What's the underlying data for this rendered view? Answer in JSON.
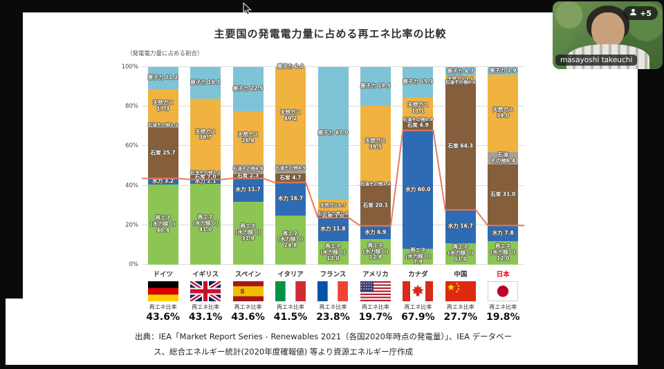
{
  "meeting": {
    "participant_name": "masayoshi takeuchi",
    "participants_overflow": "+5"
  },
  "slide": {
    "title": "主要国の発電電力量に占める再エネ比率の比較",
    "y_axis_caption": "（発電電力量に占める割合）",
    "ratio_label": "再エネ比率",
    "source_line1": "出典：IEA「Market Report Series - Renewables 2021（各国2020年時点の発電量）」、IEA データベー",
    "source_line2": "ス、総合エネルギー統計(2020年度確報値) 等より資源エネルギー庁作成"
  },
  "chart_data": {
    "type": "bar",
    "stacked": true,
    "title": "主要国の発電電力量に占める再エネ比率の比較",
    "ylabel": "（発電電力量に占める割合）",
    "ylim": [
      0,
      100
    ],
    "ytick_labels": [
      "0%",
      "20%",
      "40%",
      "60%",
      "80%",
      "100%"
    ],
    "grid": true,
    "legend_position": "none",
    "segments_top_to_bottom": [
      "nuclear",
      "gas",
      "oil_other",
      "coal",
      "hydro",
      "renewables"
    ],
    "segment_labels": {
      "nuclear": "原子力",
      "gas": "天然ガス",
      "oil_other": "石油その他",
      "coal": "石炭",
      "hydro": "水力",
      "renewables": "再エネ（水力除く）"
    },
    "colors": {
      "nuclear": "#7fc3d7",
      "gas": "#f0b340",
      "oil_other": "#a8a193",
      "coal": "#855f3b",
      "hydro": "#2d6cb5",
      "renewables": "#8cc554",
      "ratio_line": "#e5795c"
    },
    "countries": [
      {
        "key": "germany",
        "label": "ドイツ",
        "flag": "de",
        "highlight": false,
        "renewable_ratio": "43.6%",
        "ratio_value": 43.6,
        "values": {
          "nuclear": 11.2,
          "gas": 17.3,
          "oil_other": 2.2,
          "coal": 25.7,
          "hydro": 3.2,
          "renewables": 40.4
        }
      },
      {
        "key": "uk",
        "label": "イギリス",
        "flag": "gb",
        "highlight": false,
        "renewable_ratio": "43.1%",
        "ratio_value": 43.1,
        "values": {
          "nuclear": 16.1,
          "gas": 36.7,
          "oil_other": 2.1,
          "coal": 2.0,
          "hydro": 2.1,
          "renewables": 41.0
        }
      },
      {
        "key": "spain",
        "label": "スペイン",
        "flag": "es",
        "highlight": false,
        "renewable_ratio": "43.6%",
        "ratio_value": 43.6,
        "values": {
          "nuclear": 22.5,
          "gas": 26.8,
          "oil_other": 4.8,
          "coal": 2.3,
          "hydro": 11.7,
          "renewables": 31.9
        }
      },
      {
        "key": "italy",
        "label": "イタリア",
        "flag": "it",
        "highlight": false,
        "renewable_ratio": "41.5%",
        "ratio_value": 41.5,
        "values": {
          "nuclear": 0.0,
          "gas": 49.2,
          "oil_other": 4.5,
          "coal": 4.7,
          "hydro": 16.7,
          "renewables": 24.8
        }
      },
      {
        "key": "france",
        "label": "フランス",
        "flag": "fr",
        "highlight": false,
        "renewable_ratio": "23.8%",
        "ratio_value": 23.8,
        "values": {
          "nuclear": 67.0,
          "gas": 6.7,
          "oil_other": 1.5,
          "coal": 1.0,
          "hydro": 11.8,
          "renewables": 12.0
        }
      },
      {
        "key": "usa",
        "label": "アメリカ",
        "flag": "us",
        "highlight": false,
        "renewable_ratio": "19.7%",
        "ratio_value": 19.7,
        "values": {
          "nuclear": 19.5,
          "gas": 39.5,
          "oil_other": 1.2,
          "coal": 20.1,
          "hydro": 6.9,
          "renewables": 12.8
        }
      },
      {
        "key": "canada",
        "label": "カナダ",
        "flag": "ca",
        "highlight": false,
        "renewable_ratio": "67.9%",
        "ratio_value": 67.9,
        "values": {
          "nuclear": 15.3,
          "gas": 11.1,
          "oil_other": 0.8,
          "coal": 4.9,
          "hydro": 60.0,
          "renewables": 7.9
        }
      },
      {
        "key": "china",
        "label": "中国",
        "flag": "cn",
        "highlight": false,
        "renewable_ratio": "27.7%",
        "ratio_value": 27.7,
        "values": {
          "nuclear": 4.7,
          "gas": 3.1,
          "oil_other": 0.2,
          "coal": 64.3,
          "hydro": 16.7,
          "renewables": 11.0
        }
      },
      {
        "key": "japan",
        "label": "日本",
        "flag": "jp",
        "highlight": true,
        "renewable_ratio": "19.8%",
        "ratio_value": 19.8,
        "values": {
          "nuclear": 3.9,
          "gas": 39.0,
          "oil_other": 6.4,
          "coal": 31.0,
          "hydro": 7.8,
          "renewables": 12.0
        }
      }
    ],
    "ratio_line_values": [
      43.6,
      43.1,
      43.6,
      41.5,
      23.8,
      19.7,
      67.9,
      27.7,
      19.8
    ]
  }
}
